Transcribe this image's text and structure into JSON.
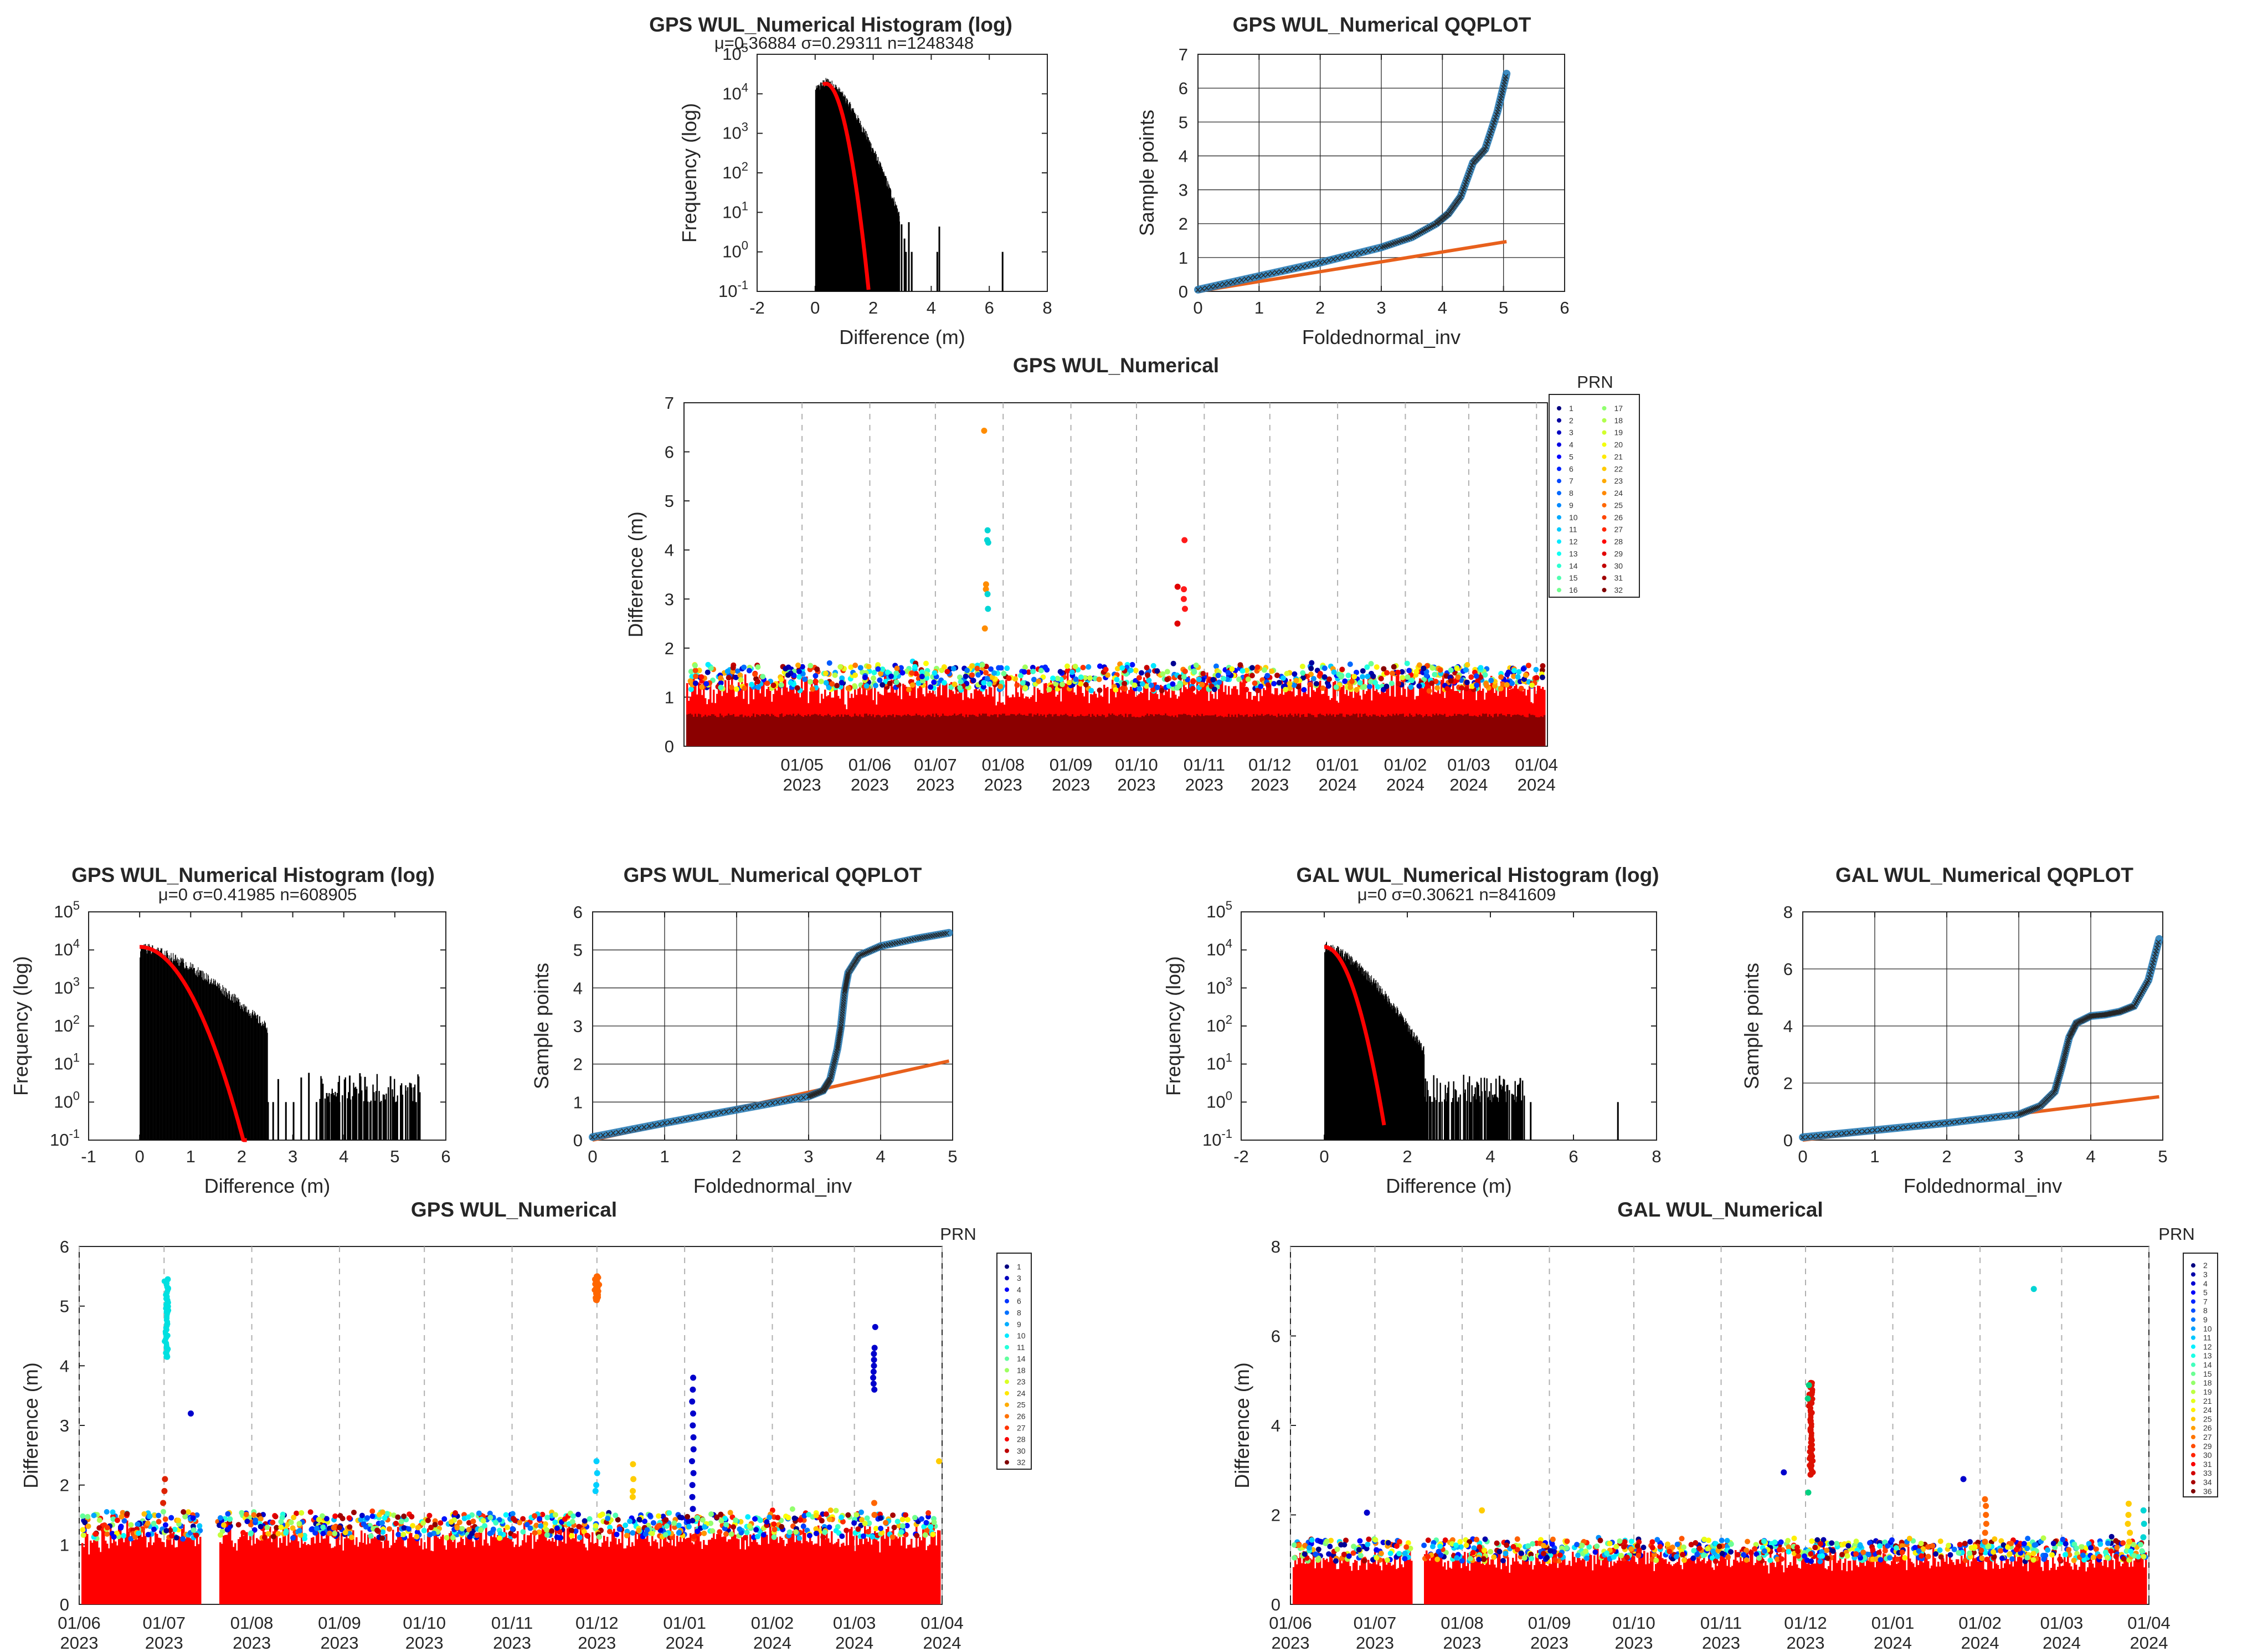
{
  "chart_data": [
    {
      "id": "hist1",
      "type": "bar",
      "title": "GPS WUL_Numerical Histogram (log)",
      "stats": "μ=0.36884 σ=0.29311 n=1248348",
      "xlabel": "Difference (m)",
      "ylabel": "Frequency (log)",
      "xlim": [
        -2,
        8
      ],
      "xticks": [
        "-2",
        "0",
        "2",
        "4",
        "6",
        "8"
      ],
      "ylim_exp": [
        -1,
        5
      ],
      "yscale": "log",
      "grid": false,
      "mean": 0.36884,
      "sigma": 0.29311,
      "n": 1248348,
      "dist": {
        "peak": 20000,
        "peakx": 0.38,
        "core_scale": 0.32,
        "tail_end": 2.9
      },
      "outliers": [
        2.95,
        3.05,
        3.1,
        3.2,
        3.3,
        4.18,
        4.25,
        6.43
      ],
      "fit": {
        "peak": 18000,
        "peakx": 0.37,
        "scale": 0.3,
        "xend": 1.85
      }
    },
    {
      "id": "qq1",
      "type": "line",
      "title": "GPS WUL_Numerical QQPLOT",
      "xlabel": "Foldednormal_inv",
      "ylabel": "Sample points",
      "xlim": [
        0,
        6
      ],
      "ylim": [
        0,
        7
      ],
      "xticks": [
        "0",
        "1",
        "2",
        "3",
        "4",
        "5",
        "6"
      ],
      "yticks": [
        "0",
        "1",
        "2",
        "3",
        "4",
        "5",
        "6",
        "7"
      ],
      "grid": true,
      "sample": [
        [
          0,
          0.05
        ],
        [
          1,
          0.45
        ],
        [
          2,
          0.85
        ],
        [
          3,
          1.3
        ],
        [
          3.5,
          1.6
        ],
        [
          3.9,
          2.0
        ],
        [
          4.1,
          2.3
        ],
        [
          4.3,
          2.8
        ],
        [
          4.5,
          3.8
        ],
        [
          4.7,
          4.2
        ],
        [
          4.9,
          5.3
        ],
        [
          5.05,
          6.43
        ]
      ],
      "ref": [
        [
          0,
          0
        ],
        [
          5.05,
          1.47
        ]
      ]
    },
    {
      "id": "scat1",
      "type": "scatter",
      "title": "GPS WUL_Numerical",
      "ylabel": "Difference (m)",
      "ylim": [
        0,
        7
      ],
      "yticks": [
        "0",
        "1",
        "2",
        "3",
        "4",
        "5",
        "6",
        "7"
      ],
      "xlim": [
        "2023-03-08",
        "2024-04-06"
      ],
      "dates": [
        {
          "d": "2023-05-01",
          "a": "01/05",
          "b": "2023"
        },
        {
          "d": "2023-06-01",
          "a": "01/06",
          "b": "2023"
        },
        {
          "d": "2023-07-01",
          "a": "01/07",
          "b": "2023"
        },
        {
          "d": "2023-08-01",
          "a": "01/08",
          "b": "2023"
        },
        {
          "d": "2023-09-01",
          "a": "01/09",
          "b": "2023"
        },
        {
          "d": "2023-10-01",
          "a": "01/10",
          "b": "2023"
        },
        {
          "d": "2023-11-01",
          "a": "01/11",
          "b": "2023"
        },
        {
          "d": "2023-12-01",
          "a": "01/12",
          "b": "2023"
        },
        {
          "d": "2024-01-01",
          "a": "01/01",
          "b": "2024"
        },
        {
          "d": "2024-02-01",
          "a": "01/02",
          "b": "2024"
        },
        {
          "d": "2024-03-01",
          "a": "01/03",
          "b": "2024"
        },
        {
          "d": "2024-04-01",
          "a": "01/04",
          "b": "2024"
        }
      ],
      "legend_title": "PRN",
      "legend": [
        "1",
        "2",
        "3",
        "4",
        "5",
        "6",
        "7",
        "8",
        "9",
        "10",
        "11",
        "12",
        "13",
        "14",
        "15",
        "16",
        "17",
        "18",
        "19",
        "20",
        "21",
        "22",
        "23",
        "24",
        "25",
        "26",
        "27",
        "28",
        "29",
        "30",
        "31",
        "32"
      ],
      "legend_cols": 2,
      "band": {
        "base": 0.95,
        "noise": 0.55,
        "top_color": "#8b0000"
      },
      "gaps": [],
      "spikes": [
        {
          "d": "2023-07-24",
          "ys": [
            6.43
          ],
          "c": "#ff8c00"
        },
        {
          "d": "2023-07-25",
          "ys": [
            4.4,
            4.2,
            4.15
          ],
          "c": "#00d5d5"
        },
        {
          "d": "2023-07-24",
          "ys": [
            3.3,
            3.2,
            2.4
          ],
          "c": "#ff8c00"
        },
        {
          "d": "2023-07-25",
          "ys": [
            3.1,
            2.8
          ],
          "c": "#00d5d5"
        },
        {
          "d": "2023-10-23",
          "ys": [
            4.2,
            3.2,
            3.0,
            2.8
          ],
          "c": "#ff1a1a"
        },
        {
          "d": "2023-10-20",
          "ys": [
            3.25,
            2.5
          ],
          "c": "#e00000"
        }
      ]
    },
    {
      "id": "hist2",
      "type": "bar",
      "title": "GPS WUL_Numerical Histogram (log)",
      "stats": "μ=0 σ=0.41985 n=608905",
      "xlabel": "Difference (m)",
      "ylabel": "Frequency (log)",
      "xlim": [
        -1,
        6
      ],
      "xticks": [
        "-1",
        "0",
        "1",
        "2",
        "3",
        "4",
        "5",
        "6"
      ],
      "ylim_exp": [
        -1,
        5
      ],
      "yscale": "log",
      "grid": false,
      "mean": 0,
      "sigma": 0.41985,
      "n": 608905,
      "dist": {
        "peak": 12000,
        "peakx": 0.02,
        "core_scale": 0.5,
        "tail_end": 2.5
      },
      "outliers": [
        2.5,
        2.6,
        2.7,
        2.85,
        3.0,
        3.15,
        3.3,
        3.45,
        3.55,
        3.65,
        3.7,
        3.8,
        3.9,
        4.0,
        4.1,
        4.2,
        4.3,
        4.4,
        4.5,
        4.6,
        4.7,
        4.8,
        4.9,
        5.0,
        5.1,
        5.2,
        5.3,
        5.4,
        5.45
      ],
      "outlier_cluster": [
        3.5,
        5.5
      ],
      "fit": {
        "peak": 12000,
        "peakx": 0,
        "scale": 0.42,
        "xend": 2.1
      }
    },
    {
      "id": "qq2",
      "type": "line",
      "title": "GPS WUL_Numerical QQPLOT",
      "xlabel": "Foldednormal_inv",
      "ylabel": "Sample points",
      "xlim": [
        0,
        5
      ],
      "ylim": [
        0,
        6
      ],
      "xticks": [
        "0",
        "1",
        "2",
        "3",
        "4",
        "5"
      ],
      "yticks": [
        "0",
        "1",
        "2",
        "3",
        "4",
        "5",
        "6"
      ],
      "grid": true,
      "sample": [
        [
          0,
          0.08
        ],
        [
          1,
          0.45
        ],
        [
          2,
          0.8
        ],
        [
          3,
          1.15
        ],
        [
          3.2,
          1.3
        ],
        [
          3.3,
          1.6
        ],
        [
          3.4,
          2.4
        ],
        [
          3.45,
          3.0
        ],
        [
          3.5,
          3.9
        ],
        [
          3.55,
          4.4
        ],
        [
          3.7,
          4.85
        ],
        [
          4.0,
          5.1
        ],
        [
          4.5,
          5.3
        ],
        [
          4.95,
          5.45
        ]
      ],
      "ref": [
        [
          0,
          0
        ],
        [
          4.95,
          2.08
        ]
      ]
    },
    {
      "id": "hist3",
      "type": "bar",
      "title": "GAL WUL_Numerical Histogram (log)",
      "stats": "μ=0 σ=0.30621 n=841609",
      "xlabel": "Difference (m)",
      "ylabel": "Frequency (log)",
      "xlim": [
        -2,
        8
      ],
      "xticks": [
        "-2",
        "0",
        "2",
        "4",
        "6",
        "8"
      ],
      "ylim_exp": [
        -1,
        5
      ],
      "yscale": "log",
      "grid": false,
      "mean": 0,
      "sigma": 0.30621,
      "n": 841609,
      "dist": {
        "peak": 13000,
        "peakx": 0.02,
        "core_scale": 0.36,
        "tail_end": 2.4
      },
      "outliers": [
        2.4,
        2.6,
        2.75,
        2.9,
        3.05,
        3.2,
        3.35,
        3.5,
        3.6,
        3.75,
        3.85,
        4.0,
        4.1,
        4.2,
        4.35,
        4.5,
        4.6,
        4.7,
        4.95,
        7.05
      ],
      "outlier_cluster": [
        2.4,
        4.8
      ],
      "fit": {
        "peak": 12000,
        "peakx": 0,
        "scale": 0.31,
        "xend": 1.45
      }
    },
    {
      "id": "qq3",
      "type": "line",
      "title": "GAL WUL_Numerical QQPLOT",
      "xlabel": "Foldednormal_inv",
      "ylabel": "Sample points",
      "xlim": [
        0,
        5
      ],
      "ylim": [
        0,
        8
      ],
      "xticks": [
        "0",
        "1",
        "2",
        "3",
        "4",
        "5"
      ],
      "yticks": [
        "0",
        "2",
        "4",
        "6",
        "8"
      ],
      "grid": true,
      "sample": [
        [
          0,
          0.1
        ],
        [
          1,
          0.35
        ],
        [
          2,
          0.6
        ],
        [
          3,
          0.9
        ],
        [
          3.3,
          1.2
        ],
        [
          3.5,
          1.7
        ],
        [
          3.6,
          2.6
        ],
        [
          3.7,
          3.6
        ],
        [
          3.8,
          4.1
        ],
        [
          4.0,
          4.35
        ],
        [
          4.2,
          4.4
        ],
        [
          4.4,
          4.5
        ],
        [
          4.6,
          4.7
        ],
        [
          4.8,
          5.6
        ],
        [
          4.95,
          7.05
        ]
      ],
      "ref": [
        [
          0,
          0
        ],
        [
          4.95,
          1.52
        ]
      ]
    },
    {
      "id": "scat2",
      "type": "scatter",
      "title": "GPS WUL_Numerical",
      "ylabel": "Difference (m)",
      "ylim": [
        0,
        6
      ],
      "yticks": [
        "0",
        "1",
        "2",
        "3",
        "4",
        "5",
        "6"
      ],
      "xlim": [
        "2023-06-01",
        "2024-04-01"
      ],
      "dates": [
        {
          "d": "2023-06-01",
          "a": "01/06",
          "b": "2023"
        },
        {
          "d": "2023-07-01",
          "a": "01/07",
          "b": "2023"
        },
        {
          "d": "2023-08-01",
          "a": "01/08",
          "b": "2023"
        },
        {
          "d": "2023-09-01",
          "a": "01/09",
          "b": "2023"
        },
        {
          "d": "2023-10-01",
          "a": "01/10",
          "b": "2023"
        },
        {
          "d": "2023-11-01",
          "a": "01/11",
          "b": "2023"
        },
        {
          "d": "2023-12-01",
          "a": "01/12",
          "b": "2023"
        },
        {
          "d": "2024-01-01",
          "a": "01/01",
          "b": "2024"
        },
        {
          "d": "2024-02-01",
          "a": "01/02",
          "b": "2024"
        },
        {
          "d": "2024-03-01",
          "a": "01/03",
          "b": "2024"
        },
        {
          "d": "2024-04-01",
          "a": "01/04",
          "b": "2024"
        }
      ],
      "legend_title": "PRN",
      "legend": [
        "1",
        "3",
        "4",
        "6",
        "8",
        "9",
        "10",
        "11",
        "14",
        "18",
        "23",
        "24",
        "25",
        "26",
        "27",
        "28",
        "30",
        "32"
      ],
      "legend_cols": 1,
      "band": {
        "base": 0.95,
        "noise": 0.45,
        "top_color": "#ff0000"
      },
      "gaps": [
        [
          "2023-07-14",
          "2023-07-20"
        ]
      ],
      "spikes": [
        {
          "d": "2023-07-02",
          "ys": [
            5.45,
            5.3,
            5.1,
            4.9,
            4.7,
            4.5,
            4.3,
            4.15
          ],
          "c": "#00e0e0",
          "dense": true
        },
        {
          "d": "2023-07-10",
          "ys": [
            3.2
          ],
          "c": "#0000cc"
        },
        {
          "d": "2023-12-01",
          "ys": [
            5.5,
            5.4,
            5.3,
            5.2,
            5.1
          ],
          "c": "#ff6600",
          "dense": true
        },
        {
          "d": "2023-12-01",
          "ys": [
            2.4,
            2.2,
            2.0,
            1.9
          ],
          "c": "#00d0ff"
        },
        {
          "d": "2023-12-14",
          "ys": [
            2.35,
            2.1,
            1.9,
            1.8
          ],
          "c": "#ffcc00"
        },
        {
          "d": "2024-01-04",
          "ys": [
            3.8,
            3.6,
            3.4,
            3.2,
            3.0,
            2.8,
            2.6,
            2.4,
            2.2,
            2.0,
            1.8,
            1.6
          ],
          "c": "#0000cc"
        },
        {
          "d": "2024-03-08",
          "ys": [
            4.65,
            4.3,
            4.2,
            4.1,
            4.0,
            3.9,
            3.8,
            3.7,
            3.6
          ],
          "c": "#0000cc"
        },
        {
          "d": "2024-03-08",
          "ys": [
            1.7,
            1.5
          ],
          "c": "#ff6600"
        },
        {
          "d": "2024-03-31",
          "ys": [
            2.4
          ],
          "c": "#ffcc00"
        },
        {
          "d": "2023-07-01",
          "ys": [
            2.1,
            1.9,
            1.7
          ],
          "c": "#dd2200"
        }
      ]
    },
    {
      "id": "scat3",
      "type": "scatter",
      "title": "GAL WUL_Numerical",
      "ylabel": "Difference (m)",
      "ylim": [
        0,
        8
      ],
      "yticks": [
        "0",
        "2",
        "4",
        "6",
        "8"
      ],
      "xlim": [
        "2023-06-01",
        "2024-04-01"
      ],
      "dates": [
        {
          "d": "2023-06-01",
          "a": "01/06",
          "b": "2023"
        },
        {
          "d": "2023-07-01",
          "a": "01/07",
          "b": "2023"
        },
        {
          "d": "2023-08-01",
          "a": "01/08",
          "b": "2023"
        },
        {
          "d": "2023-09-01",
          "a": "01/09",
          "b": "2023"
        },
        {
          "d": "2023-10-01",
          "a": "01/10",
          "b": "2023"
        },
        {
          "d": "2023-11-01",
          "a": "01/11",
          "b": "2023"
        },
        {
          "d": "2023-12-01",
          "a": "01/12",
          "b": "2023"
        },
        {
          "d": "2024-01-01",
          "a": "01/01",
          "b": "2024"
        },
        {
          "d": "2024-02-01",
          "a": "01/02",
          "b": "2024"
        },
        {
          "d": "2024-03-01",
          "a": "01/03",
          "b": "2024"
        },
        {
          "d": "2024-04-01",
          "a": "01/04",
          "b": "2024"
        }
      ],
      "legend_title": "PRN",
      "legend": [
        "2",
        "3",
        "4",
        "5",
        "7",
        "8",
        "9",
        "10",
        "11",
        "12",
        "13",
        "14",
        "15",
        "18",
        "19",
        "21",
        "24",
        "25",
        "26",
        "27",
        "29",
        "30",
        "31",
        "33",
        "34",
        "36"
      ],
      "legend_cols": 1,
      "band": {
        "base": 0.8,
        "noise": 0.5,
        "top_color": "#ff0000"
      },
      "gaps": [
        [
          "2023-07-14",
          "2023-07-18"
        ]
      ],
      "spikes": [
        {
          "d": "2023-12-03",
          "ys": [
            4.95,
            4.7,
            4.5,
            4.3,
            4.1,
            3.9,
            3.7,
            3.5,
            3.3,
            3.1,
            2.9
          ],
          "c": "#dd1100",
          "dense": true
        },
        {
          "d": "2023-12-02",
          "ys": [
            4.9,
            4.6,
            2.5
          ],
          "c": "#00d080"
        },
        {
          "d": "2024-02-20",
          "ys": [
            7.05
          ],
          "c": "#00d5d5"
        },
        {
          "d": "2023-11-23",
          "ys": [
            2.95
          ],
          "c": "#0000cc"
        },
        {
          "d": "2024-02-03",
          "ys": [
            2.35,
            2.2,
            2.0,
            1.8,
            1.6,
            1.4
          ],
          "c": "#ff6600"
        },
        {
          "d": "2024-01-26",
          "ys": [
            2.8
          ],
          "c": "#0000cc"
        },
        {
          "d": "2024-03-25",
          "ys": [
            2.25,
            2.0,
            1.8,
            1.6,
            1.4
          ],
          "c": "#ffcc00"
        },
        {
          "d": "2024-03-30",
          "ys": [
            2.1,
            1.8,
            1.5
          ],
          "c": "#00d5d5"
        },
        {
          "d": "2023-06-28",
          "ys": [
            2.05
          ],
          "c": "#0000cc"
        },
        {
          "d": "2023-08-08",
          "ys": [
            2.1
          ],
          "c": "#ffcc00"
        }
      ]
    }
  ]
}
